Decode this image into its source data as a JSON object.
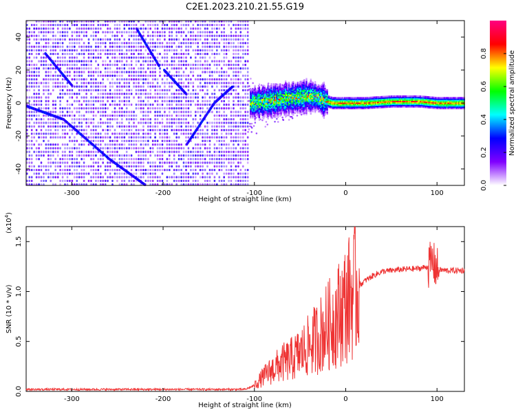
{
  "title": "C2E1.2023.210.21.55.G19",
  "chart_data": [
    {
      "type": "heatmap",
      "description_of_content": "spectrogram",
      "xlabel": "Height of straight line (km)",
      "ylabel": "Frequency (Hz)",
      "xlim": [
        -350,
        130
      ],
      "ylim": [
        -50,
        50
      ],
      "xticks": [
        -300,
        -200,
        -100,
        0,
        100
      ],
      "yticks": [
        -40,
        -20,
        0,
        20,
        40
      ],
      "noise_region_xmax": -108,
      "ridge_x": [
        -105,
        -90,
        -75,
        -60,
        -45,
        -35,
        -25,
        -15,
        0,
        20,
        50,
        80,
        100,
        130
      ],
      "ridge_y": [
        0,
        1,
        2,
        3,
        4,
        4,
        2,
        0,
        0,
        0,
        1,
        1,
        0,
        0
      ],
      "colorbar": {
        "label": "Normalized spectral amplitude",
        "range": [
          0.0,
          1.0
        ],
        "ticks": [
          "0.0",
          "0.2",
          "0.4",
          "0.6",
          "0.8"
        ],
        "colors": [
          "#ffffff",
          "#8000ff",
          "#0000ff",
          "#00ffff",
          "#00ff00",
          "#ffff00",
          "#ff0000",
          "#ff0080"
        ]
      }
    },
    {
      "type": "line",
      "xlabel": "Height of straight line (km)",
      "ylabel": "SNR (10 * v/v)",
      "y_multiplier_label": "(x10",
      "y_multiplier_exp": "4",
      "xlim": [
        -350,
        130
      ],
      "ylim": [
        0,
        1.65
      ],
      "xticks": [
        -300,
        -200,
        -100,
        0,
        100
      ],
      "yticks": [
        "0.0",
        "0.5",
        "1.0",
        "1.5"
      ],
      "color": "#ee3333",
      "x": [
        -350,
        -300,
        -200,
        -110,
        -100,
        -90,
        -80,
        -70,
        -60,
        -50,
        -40,
        -30,
        -20,
        -10,
        0,
        10,
        20,
        30,
        40,
        60,
        80,
        90,
        95,
        100,
        110,
        130
      ],
      "y": [
        0.02,
        0.02,
        0.02,
        0.02,
        0.06,
        0.15,
        0.22,
        0.28,
        0.32,
        0.38,
        0.46,
        0.55,
        0.65,
        0.75,
        0.88,
        1.02,
        1.1,
        1.16,
        1.2,
        1.22,
        1.23,
        1.25,
        1.3,
        1.22,
        1.21,
        1.21
      ]
    }
  ]
}
